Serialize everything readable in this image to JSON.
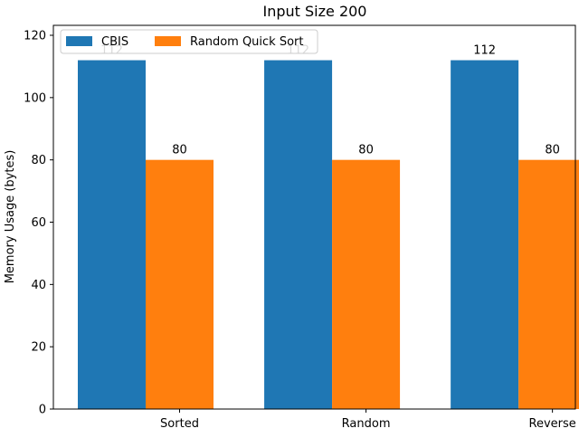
{
  "chart_data": {
    "type": "bar",
    "title": "Input Size 200",
    "xlabel": "",
    "ylabel": "Memory Usage (bytes)",
    "categories": [
      "Sorted",
      "Random",
      "Reverse"
    ],
    "series": [
      {
        "name": "CBIS",
        "values": [
          112,
          112,
          112
        ],
        "color": "#1f77b4"
      },
      {
        "name": "Random Quick Sort",
        "values": [
          80,
          80,
          80
        ],
        "color": "#ff7f0e"
      }
    ],
    "ylim": [
      0,
      123.2
    ],
    "yticks": [
      0,
      20,
      40,
      60,
      80,
      100,
      120
    ],
    "grid": false,
    "legend": "top-left",
    "data_labels": true
  }
}
